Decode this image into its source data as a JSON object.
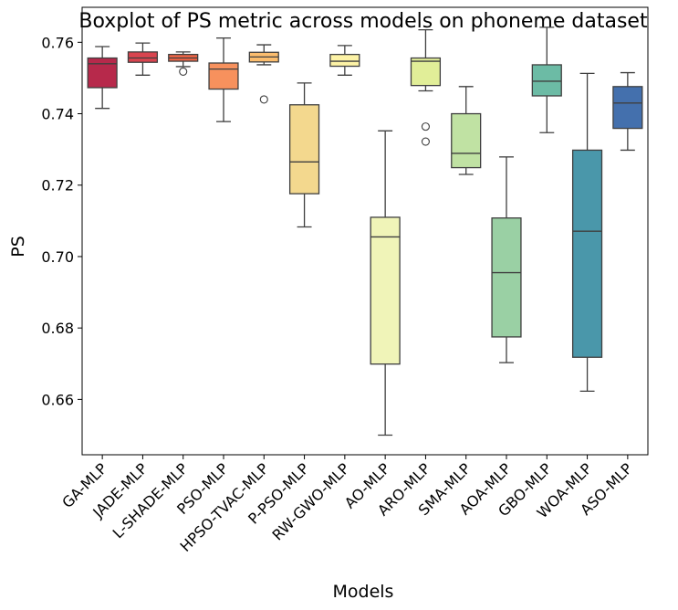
{
  "chart_data": {
    "type": "boxplot",
    "title": "Boxplot of PS metric across models on phoneme dataset",
    "xlabel": "Models",
    "ylabel": "PS",
    "ylim": [
      0.6445,
      0.7698
    ],
    "yticks": [
      0.66,
      0.68,
      0.7,
      0.72,
      0.74,
      0.76
    ],
    "ytick_labels": [
      "0.66",
      "0.68",
      "0.70",
      "0.72",
      "0.74",
      "0.76"
    ],
    "grid": false,
    "legend": "none",
    "categories": [
      "GA-MLP",
      "JADE-MLP",
      "L-SHADE-MLP",
      "PSO-MLP",
      "HPSO-TVAC-MLP",
      "P-PSO-MLP",
      "RW-GWO-MLP",
      "AO-MLP",
      "ARO-MLP",
      "SMA-MLP",
      "AOA-MLP",
      "GBO-MLP",
      "WOA-MLP",
      "ASO-MLP"
    ],
    "boxes": [
      {
        "label": "GA-MLP",
        "whislo": 0.7415,
        "q1": 0.7473,
        "med": 0.754,
        "q3": 0.7556,
        "whishi": 0.7588,
        "fliers": [],
        "color": "#b7294b"
      },
      {
        "label": "JADE-MLP",
        "whislo": 0.7508,
        "q1": 0.7544,
        "med": 0.7556,
        "q3": 0.7573,
        "whishi": 0.7598,
        "fliers": [],
        "color": "#d9444f"
      },
      {
        "label": "L-SHADE-MLP",
        "whislo": 0.7532,
        "q1": 0.7547,
        "med": 0.7556,
        "q3": 0.7566,
        "whishi": 0.7573,
        "fliers": [
          0.7518
        ],
        "color": "#ee6445"
      },
      {
        "label": "PSO-MLP",
        "whislo": 0.7378,
        "q1": 0.7469,
        "med": 0.7525,
        "q3": 0.7542,
        "whishi": 0.7612,
        "fliers": [],
        "color": "#f7915d"
      },
      {
        "label": "HPSO-TVAC-MLP",
        "whislo": 0.7537,
        "q1": 0.7545,
        "med": 0.7559,
        "q3": 0.7572,
        "whishi": 0.7593,
        "fliers": [
          0.744
        ],
        "color": "#fbbd6e"
      },
      {
        "label": "P-PSO-MLP",
        "whislo": 0.7083,
        "q1": 0.7176,
        "med": 0.7265,
        "q3": 0.7425,
        "whishi": 0.7486,
        "fliers": [],
        "color": "#f3d88e"
      },
      {
        "label": "RW-GWO-MLP",
        "whislo": 0.7508,
        "q1": 0.7533,
        "med": 0.7547,
        "q3": 0.7566,
        "whishi": 0.7591,
        "fliers": [],
        "color": "#fdf3a6"
      },
      {
        "label": "AO-MLP",
        "whislo": 0.65,
        "q1": 0.6699,
        "med": 0.7055,
        "q3": 0.711,
        "whishi": 0.7352,
        "fliers": [],
        "color": "#f0f4b8"
      },
      {
        "label": "ARO-MLP",
        "whislo": 0.7464,
        "q1": 0.7479,
        "med": 0.7547,
        "q3": 0.7556,
        "whishi": 0.7635,
        "fliers": [
          0.7364,
          0.7322
        ],
        "color": "#e1ee98"
      },
      {
        "label": "SMA-MLP",
        "whislo": 0.723,
        "q1": 0.7249,
        "med": 0.7289,
        "q3": 0.74,
        "whishi": 0.7476,
        "fliers": [],
        "color": "#c0e2a3"
      },
      {
        "label": "AOA-MLP",
        "whislo": 0.6703,
        "q1": 0.6775,
        "med": 0.6955,
        "q3": 0.7108,
        "whishi": 0.7279,
        "fliers": [],
        "color": "#9ad0a4"
      },
      {
        "label": "GBO-MLP",
        "whislo": 0.7347,
        "q1": 0.745,
        "med": 0.7491,
        "q3": 0.7537,
        "whishi": 0.7642,
        "fliers": [],
        "color": "#6cbba5"
      },
      {
        "label": "WOA-MLP",
        "whislo": 0.6623,
        "q1": 0.6718,
        "med": 0.7071,
        "q3": 0.7298,
        "whishi": 0.7513,
        "fliers": [],
        "color": "#4a97aa"
      },
      {
        "label": "ASO-MLP",
        "whislo": 0.7298,
        "q1": 0.7359,
        "med": 0.743,
        "q3": 0.7476,
        "whishi": 0.7515,
        "fliers": [],
        "color": "#4470ad"
      }
    ]
  }
}
